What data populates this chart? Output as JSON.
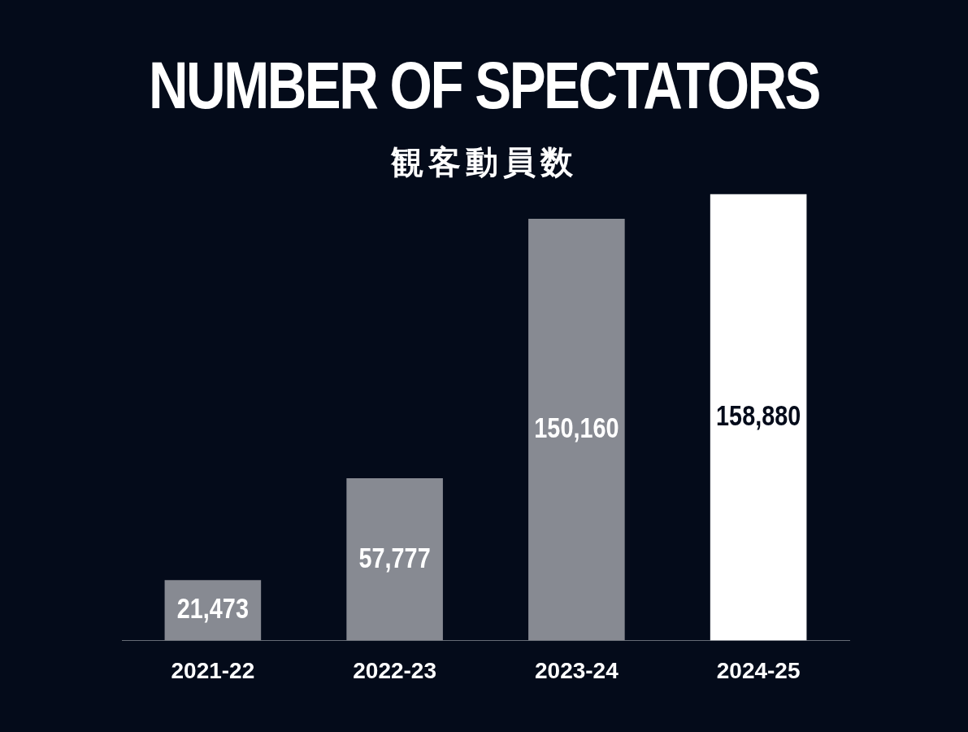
{
  "chart_data": {
    "type": "bar",
    "title": "NUMBER OF SPECTATORS",
    "subtitle": "観客動員数",
    "categories": [
      "2021-22",
      "2022-23",
      "2023-24",
      "2024-25"
    ],
    "values": [
      21473,
      57777,
      150160,
      158880
    ],
    "colors": [
      "#878a92",
      "#878a92",
      "#878a92",
      "#ffffff"
    ],
    "value_labels": [
      "21,473",
      "57,777",
      "150,160",
      "158,880"
    ],
    "tick_labels": "x"
  }
}
